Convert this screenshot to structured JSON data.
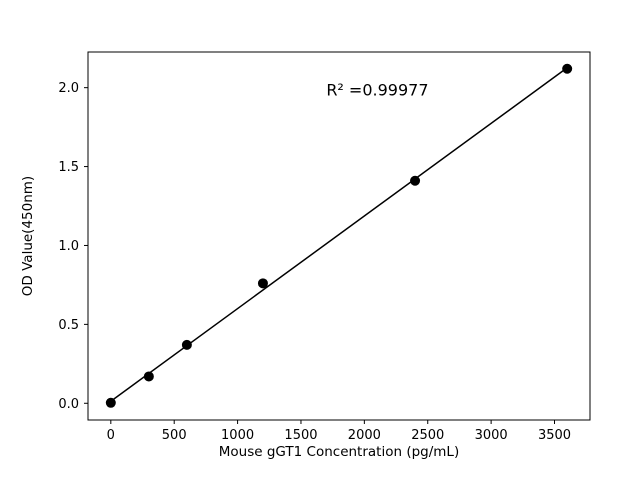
{
  "chart_data": {
    "type": "scatter",
    "title": "",
    "xlabel": "Mouse gGT1 Concentration (pg/mL)",
    "ylabel": "OD Value(450nm)",
    "x": [
      0,
      300,
      600,
      1200,
      2400,
      3600
    ],
    "y": [
      0.003,
      0.17,
      0.37,
      0.76,
      1.41,
      2.12
    ],
    "fit_line": {
      "x1": 0,
      "y1": 0.013,
      "x2": 3600,
      "y2": 2.126
    },
    "annotation": {
      "text": "R² =0.99977",
      "x": 1700,
      "y": 1.95
    },
    "xticks": [
      0,
      500,
      1000,
      1500,
      2000,
      2500,
      3000,
      3500
    ],
    "yticks": [
      0.0,
      0.5,
      1.0,
      1.5,
      2.0
    ],
    "xlim": [
      -180,
      3780
    ],
    "ylim": [
      -0.106,
      2.226
    ],
    "grid": false,
    "legend": null,
    "marker_color": "#000000",
    "line_color": "#000000",
    "background_color": "#ffffff"
  }
}
